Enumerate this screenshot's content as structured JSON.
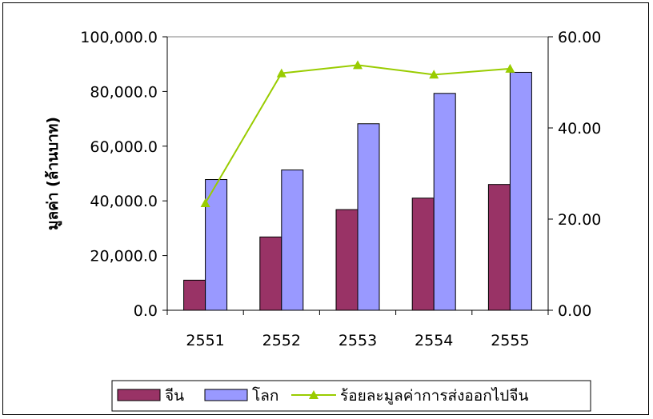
{
  "chart_data": {
    "type": "bar",
    "categories": [
      "2551",
      "2552",
      "2553",
      "2554",
      "2555"
    ],
    "series": [
      {
        "name": "จีน",
        "kind": "bar",
        "axis": "left",
        "color": "#993366",
        "values": [
          11000,
          26800,
          36800,
          41000,
          46000
        ]
      },
      {
        "name": "โลก",
        "kind": "bar",
        "axis": "left",
        "color": "#9999FF",
        "values": [
          47800,
          51300,
          68200,
          79300,
          87000
        ]
      },
      {
        "name": "ร้อยละมูลค่าการส่งออกไปจีน",
        "kind": "line",
        "axis": "right",
        "color": "#99CC00",
        "marker": "triangle",
        "values": [
          23.5,
          52.0,
          53.8,
          51.7,
          53.0
        ]
      }
    ],
    "ylabel": "มูลค่า (ล้านบาท)",
    "ylim": [
      0,
      100000
    ],
    "yticks": [
      "0.0",
      "20,000.0",
      "40,000.0",
      "60,000.0",
      "80,000.0",
      "100,000.0"
    ],
    "y2lim": [
      0,
      60
    ],
    "y2ticks": [
      "0.00",
      "20.00",
      "40.00",
      "60.00"
    ],
    "grid": false,
    "legend_position": "bottom"
  }
}
